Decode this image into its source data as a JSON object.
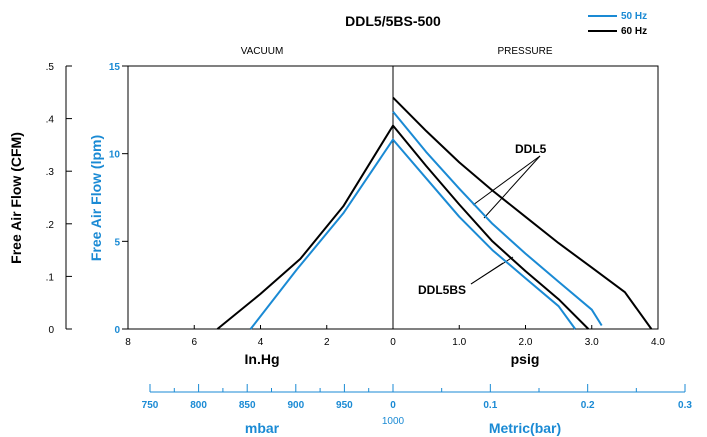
{
  "chart_data": {
    "type": "line",
    "title": "DDL5/5BS-500",
    "legend": {
      "placement": "top-right",
      "entries": [
        {
          "name": "50 Hz",
          "color": "#1a8ad4"
        },
        {
          "name": "60 Hz",
          "color": "#000000"
        }
      ]
    },
    "region_labels": {
      "left": "VACUUM",
      "right": "PRESSURE"
    },
    "y_left_outer": {
      "label": "Free Air Flow (CFM)",
      "ticks": [
        "0",
        ".1",
        ".2",
        ".3",
        ".4",
        ".5"
      ]
    },
    "y_left_inner": {
      "label": "Free Air Flow (lpm)",
      "ticks": [
        "0",
        "5",
        "10",
        "15"
      ],
      "ylim": [
        0,
        15
      ],
      "color": "#1a8ad4"
    },
    "x_vacuum": {
      "label": "In.Hg",
      "ticks": [
        "8",
        "6",
        "4",
        "2",
        "0"
      ],
      "xlim": [
        8,
        0
      ]
    },
    "x_pressure": {
      "label": "psig",
      "ticks": [
        "1.0",
        "2.0",
        "3.0",
        "4.0"
      ],
      "xlim": [
        0,
        4
      ]
    },
    "x_vacuum_metric": {
      "label": "mbar",
      "ticks": [
        "750",
        "800",
        "850",
        "900",
        "950",
        "0"
      ],
      "center_label": "1000"
    },
    "x_pressure_metric": {
      "label": "Metric(bar)",
      "ticks": [
        "0.1",
        "0.2",
        "0.3"
      ]
    },
    "annotations": [
      "DDL5",
      "DDL5BS"
    ],
    "series": [
      {
        "name": "DDL5 60 Hz",
        "color": "#000000",
        "vacuum_points": [
          [
            0,
            13.2
          ]
        ],
        "pressure_points": [
          [
            0,
            13.2
          ],
          [
            0.5,
            11.3
          ],
          [
            1.0,
            9.5
          ],
          [
            1.5,
            7.9
          ],
          [
            2.0,
            6.4
          ],
          [
            2.5,
            4.9
          ],
          [
            3.0,
            3.5
          ],
          [
            3.5,
            2.1
          ],
          [
            3.9,
            0
          ]
        ]
      },
      {
        "name": "DDL5 50 Hz",
        "color": "#1a8ad4",
        "vacuum_points": [
          [
            0,
            12.4
          ]
        ],
        "pressure_points": [
          [
            0,
            12.4
          ],
          [
            0.5,
            10.1
          ],
          [
            1.0,
            8.0
          ],
          [
            1.5,
            6.0
          ],
          [
            2.0,
            4.3
          ],
          [
            2.5,
            2.7
          ],
          [
            3.0,
            1.1
          ],
          [
            3.15,
            0.2
          ]
        ]
      },
      {
        "name": "DDL5BS 60 Hz",
        "color": "#000000",
        "vacuum_points": [
          [
            5.3,
            0
          ],
          [
            4.0,
            2.0
          ],
          [
            2.8,
            4.0
          ],
          [
            1.5,
            7.0
          ],
          [
            0,
            11.6
          ]
        ],
        "pressure_points": [
          [
            0,
            11.6
          ],
          [
            0.5,
            9.3
          ],
          [
            1.0,
            7.1
          ],
          [
            1.5,
            5.0
          ],
          [
            2.0,
            3.3
          ],
          [
            2.5,
            1.7
          ],
          [
            2.95,
            0
          ]
        ]
      },
      {
        "name": "DDL5BS 50 Hz",
        "color": "#1a8ad4",
        "vacuum_points": [
          [
            4.3,
            0
          ],
          [
            2.9,
            3.4
          ],
          [
            1.5,
            6.6
          ],
          [
            0,
            10.8
          ]
        ],
        "pressure_points": [
          [
            0,
            10.8
          ],
          [
            0.5,
            8.6
          ],
          [
            1.0,
            6.4
          ],
          [
            1.5,
            4.5
          ],
          [
            2.0,
            2.9
          ],
          [
            2.5,
            1.3
          ],
          [
            2.75,
            0
          ]
        ]
      }
    ]
  }
}
